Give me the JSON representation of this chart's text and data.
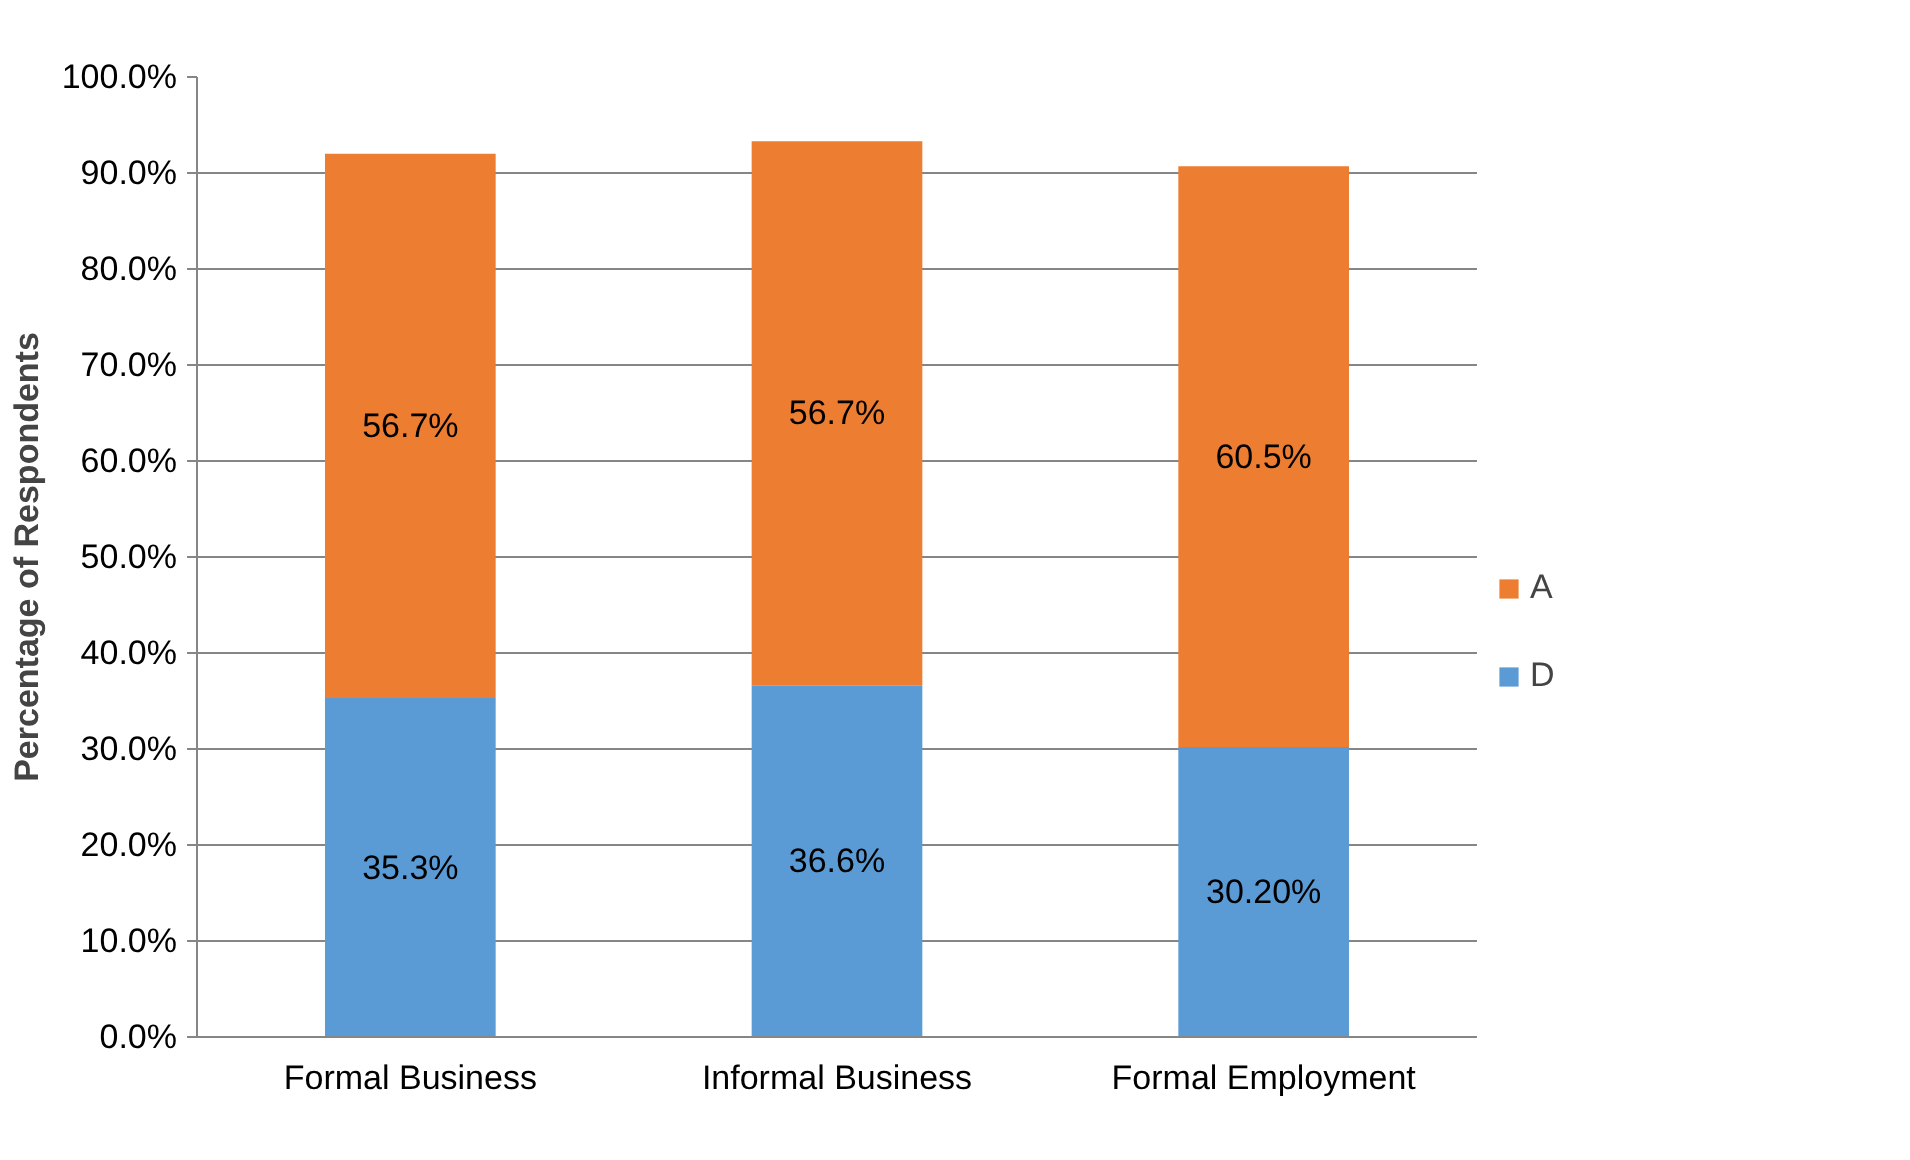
{
  "chart_data": {
    "type": "bar",
    "stacked": true,
    "ylabel": "Percentage of Respondents",
    "categories": [
      "Formal Business",
      "Informal Business",
      "Formal Employment"
    ],
    "series": [
      {
        "name": "D",
        "color": "#5b9bd5",
        "values": [
          35.3,
          36.6,
          30.2
        ],
        "value_labels": [
          "35.3%",
          "36.6%",
          "30.20%"
        ]
      },
      {
        "name": "A",
        "color": "#ed7d31",
        "values": [
          56.7,
          56.7,
          60.5
        ],
        "value_labels": [
          "56.7%",
          "56.7%",
          "60.5%"
        ]
      }
    ],
    "ylim": [
      0,
      100
    ],
    "yticks": [
      {
        "value": 0,
        "label": "0.0%"
      },
      {
        "value": 10,
        "label": "10.0%"
      },
      {
        "value": 20,
        "label": "20.0%"
      },
      {
        "value": 30,
        "label": "30.0%"
      },
      {
        "value": 40,
        "label": "40.0%"
      },
      {
        "value": 50,
        "label": "50.0%"
      },
      {
        "value": 60,
        "label": "60.0%"
      },
      {
        "value": 70,
        "label": "70.0%"
      },
      {
        "value": 80,
        "label": "80.0%"
      },
      {
        "value": 90,
        "label": "90.0%"
      },
      {
        "value": 100,
        "label": "100.0%"
      }
    ],
    "grid": "y",
    "legend": "right"
  }
}
